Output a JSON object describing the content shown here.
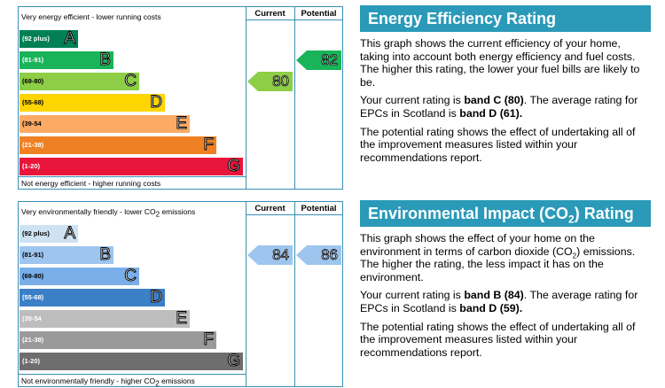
{
  "energy": {
    "chart": {
      "header_current": "Current",
      "header_potential": "Potential",
      "top_note": "Very energy efficient - lower running costs",
      "bottom_note": "Not energy efficient - higher running costs",
      "bands": [
        {
          "range": "(92 plus)",
          "letter": "A",
          "color": "#008054"
        },
        {
          "range": "(81-91)",
          "letter": "B",
          "color": "#19b459"
        },
        {
          "range": "(69-80)",
          "letter": "C",
          "color": "#8dce46"
        },
        {
          "range": "(55-68)",
          "letter": "D",
          "color": "#ffd500"
        },
        {
          "range": "(39-54",
          "letter": "E",
          "color": "#fcaa65"
        },
        {
          "range": "(21-38)",
          "letter": "F",
          "color": "#ef8023"
        },
        {
          "range": "(1-20)",
          "letter": "G",
          "color": "#e9153b"
        }
      ],
      "current": {
        "value": "80",
        "band": "C",
        "color": "#8dce46"
      },
      "potential": {
        "value": "82",
        "band": "B",
        "color": "#19b459"
      }
    },
    "panel": {
      "title": "Energy Efficiency Rating",
      "p1": "This graph shows the current efficiency of your home, taking into account both energy efficiency and fuel costs. The higher this rating, the lower your fuel bills are likely to be.",
      "p2_pre": "Your current rating is ",
      "p2_b1": "band C (80)",
      "p2_mid": ". The average rating for EPCs in Scotland is ",
      "p2_b2": "band D (61).",
      "p3": "The potential rating shows the effect of undertaking all of the improvement measures listed within your recommendations report."
    }
  },
  "environment": {
    "chart": {
      "header_current": "Current",
      "header_potential": "Potential",
      "top_note_pre": "Very environmentally friendly - lower CO",
      "top_note_sub": "2",
      "top_note_post": " emissions",
      "bottom_note_pre": "Not environmentally friendly - higher CO",
      "bottom_note_sub": "2",
      "bottom_note_post": " emissions",
      "bands": [
        {
          "range": "(92 plus)",
          "letter": "A",
          "color": "#cfe2f3"
        },
        {
          "range": "(81-91)",
          "letter": "B",
          "color": "#9ec5ee"
        },
        {
          "range": "(69-80)",
          "letter": "C",
          "color": "#7aaee8"
        },
        {
          "range": "(55-68)",
          "letter": "D",
          "color": "#3b7fc7"
        },
        {
          "range": "(39-54",
          "letter": "E",
          "color": "#bdbdbd"
        },
        {
          "range": "(21-38)",
          "letter": "F",
          "color": "#9a9a9a"
        },
        {
          "range": "(1-20)",
          "letter": "G",
          "color": "#6e6e6e"
        }
      ],
      "current": {
        "value": "84",
        "band": "B",
        "color": "#9ec5ee"
      },
      "potential": {
        "value": "86",
        "band": "B",
        "color": "#9ec5ee"
      }
    },
    "panel": {
      "title_pre": "Environmental Impact (CO",
      "title_sub": "2",
      "title_post": ") Rating",
      "p1_pre": "This graph shows the effect of your home on the environment in terms of carbon dioxide (CO",
      "p1_sub": "2",
      "p1_post": ") emissions. The higher the rating, the less impact it has on the environment.",
      "p2_pre": "Your current rating is ",
      "p2_b1": "band B (84)",
      "p2_mid": ". The average rating for EPCs in Scotland is ",
      "p2_b2": "band D (59).",
      "p3": "The potential rating shows the effect of undertaking all of the improvement measures listed within your recommendations report."
    }
  }
}
